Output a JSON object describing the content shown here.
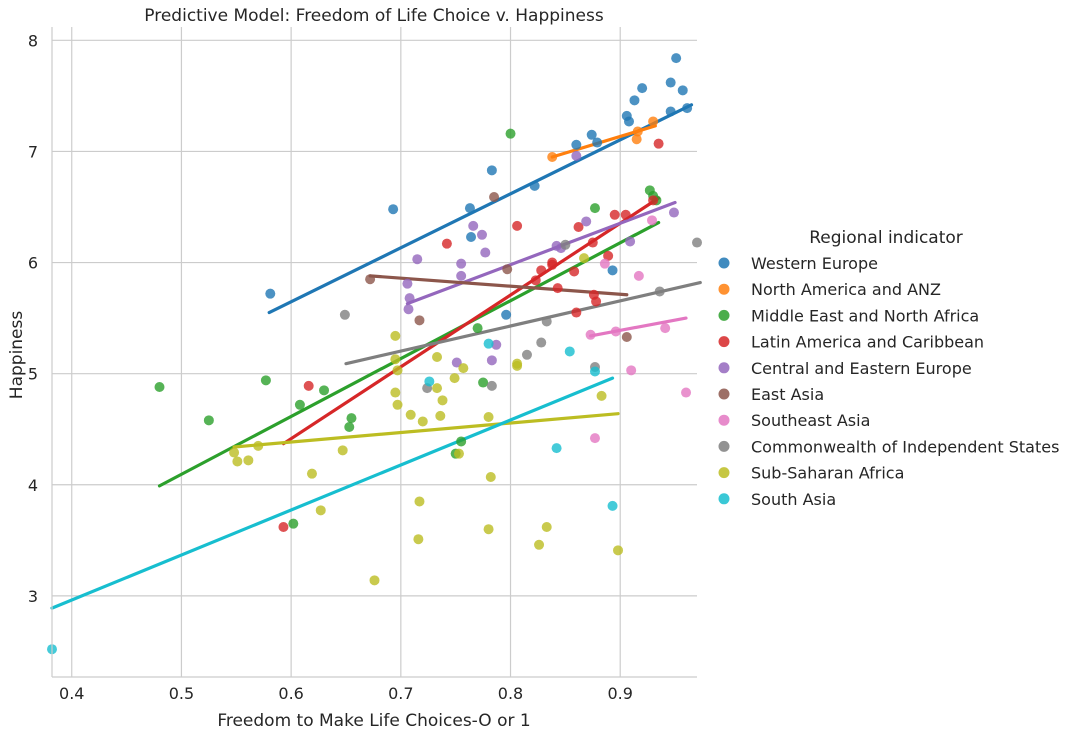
{
  "chart_data": {
    "type": "scatter",
    "title": "Predictive Model: Freedom of Life Choice v. Happiness",
    "xlabel": "Freedom to Make Life Choices-O or 1",
    "ylabel": "Happiness",
    "xlim": [
      0.382,
      0.97
    ],
    "ylim": [
      2.27,
      8.12
    ],
    "xticks": [
      "0.4",
      "0.5",
      "0.6",
      "0.7",
      "0.8",
      "0.9"
    ],
    "yticks": [
      "3",
      "4",
      "5",
      "6",
      "7",
      "8"
    ],
    "grid": true,
    "legend_title": "Regional indicator",
    "legend_position": "right",
    "series": [
      {
        "name": "Western Europe",
        "color": "#1f77b4",
        "points": [
          [
            0.581,
            5.72
          ],
          [
            0.693,
            6.48
          ],
          [
            0.763,
            6.49
          ],
          [
            0.764,
            6.23
          ],
          [
            0.783,
            6.83
          ],
          [
            0.796,
            5.53
          ],
          [
            0.822,
            6.69
          ],
          [
            0.86,
            7.06
          ],
          [
            0.874,
            7.15
          ],
          [
            0.879,
            7.08
          ],
          [
            0.893,
            5.93
          ],
          [
            0.906,
            7.32
          ],
          [
            0.908,
            7.27
          ],
          [
            0.913,
            7.46
          ],
          [
            0.92,
            7.57
          ],
          [
            0.946,
            7.62
          ],
          [
            0.946,
            7.36
          ],
          [
            0.951,
            7.84
          ],
          [
            0.957,
            7.55
          ],
          [
            0.961,
            7.39
          ]
        ],
        "fit": [
          [
            0.58,
            5.55
          ],
          [
            0.965,
            7.42
          ]
        ]
      },
      {
        "name": "North America and ANZ",
        "color": "#ff7f0e",
        "points": [
          [
            0.838,
            6.95
          ],
          [
            0.915,
            7.11
          ],
          [
            0.916,
            7.18
          ],
          [
            0.93,
            7.27
          ]
        ],
        "fit": [
          [
            0.838,
            6.95
          ],
          [
            0.932,
            7.23
          ]
        ]
      },
      {
        "name": "Middle East and North Africa",
        "color": "#2ca02c",
        "points": [
          [
            0.48,
            4.88
          ],
          [
            0.525,
            4.58
          ],
          [
            0.577,
            4.94
          ],
          [
            0.602,
            3.65
          ],
          [
            0.608,
            4.72
          ],
          [
            0.63,
            4.85
          ],
          [
            0.653,
            4.52
          ],
          [
            0.655,
            4.6
          ],
          [
            0.77,
            5.41
          ],
          [
            0.775,
            4.92
          ],
          [
            0.755,
            4.39
          ],
          [
            0.75,
            4.28
          ],
          [
            0.8,
            7.16
          ],
          [
            0.877,
            6.49
          ],
          [
            0.927,
            6.65
          ],
          [
            0.93,
            6.6
          ],
          [
            0.933,
            6.56
          ]
        ],
        "fit": [
          [
            0.48,
            3.99
          ],
          [
            0.935,
            6.36
          ]
        ]
      },
      {
        "name": "Latin America and Caribbean",
        "color": "#d62728",
        "points": [
          [
            0.593,
            3.62
          ],
          [
            0.616,
            4.89
          ],
          [
            0.742,
            6.17
          ],
          [
            0.806,
            6.33
          ],
          [
            0.823,
            5.84
          ],
          [
            0.828,
            5.93
          ],
          [
            0.838,
            6.0
          ],
          [
            0.838,
            5.98
          ],
          [
            0.843,
            5.77
          ],
          [
            0.858,
            5.92
          ],
          [
            0.86,
            5.55
          ],
          [
            0.862,
            6.32
          ],
          [
            0.875,
            6.18
          ],
          [
            0.876,
            5.71
          ],
          [
            0.878,
            5.65
          ],
          [
            0.889,
            6.06
          ],
          [
            0.895,
            6.43
          ],
          [
            0.905,
            6.43
          ],
          [
            0.935,
            7.07
          ],
          [
            0.93,
            6.56
          ]
        ],
        "fit": [
          [
            0.593,
            4.37
          ],
          [
            0.935,
            6.58
          ]
        ]
      },
      {
        "name": "Central and Eastern Europe",
        "color": "#9467bd",
        "points": [
          [
            0.706,
            5.81
          ],
          [
            0.707,
            5.58
          ],
          [
            0.708,
            5.68
          ],
          [
            0.715,
            6.03
          ],
          [
            0.751,
            5.1
          ],
          [
            0.755,
            5.99
          ],
          [
            0.755,
            5.88
          ],
          [
            0.766,
            6.33
          ],
          [
            0.774,
            6.25
          ],
          [
            0.777,
            6.09
          ],
          [
            0.783,
            5.12
          ],
          [
            0.787,
            5.26
          ],
          [
            0.842,
            6.15
          ],
          [
            0.846,
            6.13
          ],
          [
            0.86,
            6.96
          ],
          [
            0.869,
            6.37
          ],
          [
            0.909,
            6.19
          ],
          [
            0.949,
            6.45
          ]
        ],
        "fit": [
          [
            0.706,
            5.63
          ],
          [
            0.95,
            6.54
          ]
        ]
      },
      {
        "name": "East Asia",
        "color": "#8c564b",
        "points": [
          [
            0.672,
            5.85
          ],
          [
            0.717,
            5.48
          ],
          [
            0.785,
            6.59
          ],
          [
            0.797,
            5.94
          ],
          [
            0.906,
            5.33
          ]
        ],
        "fit": [
          [
            0.672,
            5.88
          ],
          [
            0.906,
            5.71
          ]
        ]
      },
      {
        "name": "Southeast Asia",
        "color": "#e377c2",
        "points": [
          [
            0.873,
            5.35
          ],
          [
            0.877,
            4.42
          ],
          [
            0.886,
            5.99
          ],
          [
            0.896,
            5.38
          ],
          [
            0.91,
            5.03
          ],
          [
            0.917,
            5.88
          ],
          [
            0.929,
            6.38
          ],
          [
            0.941,
            5.41
          ],
          [
            0.96,
            4.83
          ]
        ],
        "fit": [
          [
            0.873,
            5.34
          ],
          [
            0.96,
            5.5
          ]
        ]
      },
      {
        "name": "Commonwealth of Independent States",
        "color": "#7f7f7f",
        "points": [
          [
            0.649,
            5.53
          ],
          [
            0.724,
            4.87
          ],
          [
            0.783,
            4.89
          ],
          [
            0.815,
            5.17
          ],
          [
            0.828,
            5.28
          ],
          [
            0.833,
            5.47
          ],
          [
            0.85,
            6.16
          ],
          [
            0.877,
            5.06
          ],
          [
            0.936,
            5.74
          ],
          [
            0.973,
            6.18
          ]
        ],
        "fit": [
          [
            0.65,
            5.09
          ],
          [
            0.973,
            5.82
          ]
        ]
      },
      {
        "name": "Sub-Saharan Africa",
        "color": "#bcbd22",
        "points": [
          [
            0.548,
            4.29
          ],
          [
            0.551,
            4.21
          ],
          [
            0.561,
            4.22
          ],
          [
            0.57,
            4.35
          ],
          [
            0.619,
            4.1
          ],
          [
            0.627,
            3.77
          ],
          [
            0.647,
            4.31
          ],
          [
            0.676,
            3.14
          ],
          [
            0.695,
            5.34
          ],
          [
            0.695,
            5.13
          ],
          [
            0.695,
            4.83
          ],
          [
            0.697,
            4.72
          ],
          [
            0.697,
            5.03
          ],
          [
            0.709,
            4.63
          ],
          [
            0.716,
            3.51
          ],
          [
            0.717,
            3.85
          ],
          [
            0.72,
            4.57
          ],
          [
            0.733,
            4.87
          ],
          [
            0.733,
            5.15
          ],
          [
            0.736,
            4.62
          ],
          [
            0.738,
            4.76
          ],
          [
            0.749,
            4.96
          ],
          [
            0.753,
            4.28
          ],
          [
            0.757,
            5.05
          ],
          [
            0.78,
            4.61
          ],
          [
            0.78,
            3.6
          ],
          [
            0.782,
            4.07
          ],
          [
            0.806,
            5.07
          ],
          [
            0.806,
            5.09
          ],
          [
            0.826,
            3.46
          ],
          [
            0.833,
            3.62
          ],
          [
            0.867,
            6.04
          ],
          [
            0.883,
            4.8
          ],
          [
            0.898,
            3.41
          ]
        ],
        "fit": [
          [
            0.548,
            4.34
          ],
          [
            0.898,
            4.64
          ]
        ]
      },
      {
        "name": "South Asia",
        "color": "#17becf",
        "points": [
          [
            0.382,
            2.52
          ],
          [
            0.726,
            4.93
          ],
          [
            0.78,
            5.27
          ],
          [
            0.842,
            4.33
          ],
          [
            0.854,
            5.2
          ],
          [
            0.877,
            5.02
          ],
          [
            0.893,
            3.81
          ]
        ],
        "fit": [
          [
            0.382,
            2.89
          ],
          [
            0.893,
            4.96
          ]
        ]
      }
    ]
  }
}
